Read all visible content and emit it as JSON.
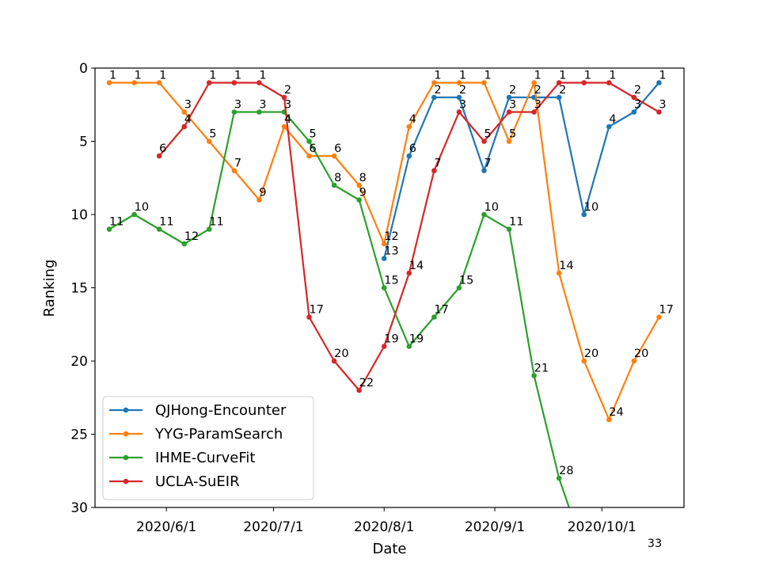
{
  "chart_data": {
    "type": "line",
    "xlabel": "Date",
    "ylabel": "Ranking",
    "ylim": [
      30,
      0
    ],
    "y_inverted": true,
    "xlim": [
      "2020-05-12",
      "2020-10-24"
    ],
    "x_ticks": [
      {
        "date": "2020-06-01",
        "label": "2020/6/1"
      },
      {
        "date": "2020-07-01",
        "label": "2020/7/1"
      },
      {
        "date": "2020-08-01",
        "label": "2020/8/1"
      },
      {
        "date": "2020-09-01",
        "label": "2020/9/1"
      },
      {
        "date": "2020-10-01",
        "label": "2020/10/1"
      }
    ],
    "y_ticks": [
      0,
      5,
      10,
      15,
      20,
      25,
      30
    ],
    "grid": false,
    "legend": "lower-left",
    "series": [
      {
        "name": "QJHong-Encounter",
        "color": "#1f77b4",
        "points": [
          {
            "x": "2020-08-01",
            "y": 13
          },
          {
            "x": "2020-08-08",
            "y": 6
          },
          {
            "x": "2020-08-15",
            "y": 2
          },
          {
            "x": "2020-08-22",
            "y": 2
          },
          {
            "x": "2020-08-29",
            "y": 7
          },
          {
            "x": "2020-09-05",
            "y": 2
          },
          {
            "x": "2020-09-12",
            "y": 2
          },
          {
            "x": "2020-09-19",
            "y": 2
          },
          {
            "x": "2020-09-26",
            "y": 10
          },
          {
            "x": "2020-10-03",
            "y": 4
          },
          {
            "x": "2020-10-10",
            "y": 3
          },
          {
            "x": "2020-10-17",
            "y": 1
          }
        ]
      },
      {
        "name": "YYG-ParamSearch",
        "color": "#ff7f0e",
        "points": [
          {
            "x": "2020-05-16",
            "y": 1
          },
          {
            "x": "2020-05-23",
            "y": 1
          },
          {
            "x": "2020-05-30",
            "y": 1
          },
          {
            "x": "2020-06-06",
            "y": 3
          },
          {
            "x": "2020-06-13",
            "y": 5
          },
          {
            "x": "2020-06-20",
            "y": 7
          },
          {
            "x": "2020-06-27",
            "y": 9
          },
          {
            "x": "2020-07-04",
            "y": 4
          },
          {
            "x": "2020-07-11",
            "y": 6
          },
          {
            "x": "2020-07-18",
            "y": 6
          },
          {
            "x": "2020-07-25",
            "y": 8
          },
          {
            "x": "2020-08-01",
            "y": 12
          },
          {
            "x": "2020-08-08",
            "y": 4
          },
          {
            "x": "2020-08-15",
            "y": 1
          },
          {
            "x": "2020-08-22",
            "y": 1
          },
          {
            "x": "2020-08-29",
            "y": 1
          },
          {
            "x": "2020-09-05",
            "y": 5
          },
          {
            "x": "2020-09-12",
            "y": 1
          },
          {
            "x": "2020-09-19",
            "y": 14
          },
          {
            "x": "2020-09-26",
            "y": 20
          },
          {
            "x": "2020-10-03",
            "y": 24
          },
          {
            "x": "2020-10-10",
            "y": 20
          },
          {
            "x": "2020-10-17",
            "y": 17
          }
        ]
      },
      {
        "name": "IHME-CurveFit",
        "color": "#2ca02c",
        "points": [
          {
            "x": "2020-05-16",
            "y": 11
          },
          {
            "x": "2020-05-23",
            "y": 10
          },
          {
            "x": "2020-05-30",
            "y": 11
          },
          {
            "x": "2020-06-06",
            "y": 12
          },
          {
            "x": "2020-06-13",
            "y": 11
          },
          {
            "x": "2020-06-20",
            "y": 3
          },
          {
            "x": "2020-06-27",
            "y": 3
          },
          {
            "x": "2020-07-04",
            "y": 3
          },
          {
            "x": "2020-07-11",
            "y": 5
          },
          {
            "x": "2020-07-18",
            "y": 8
          },
          {
            "x": "2020-07-25",
            "y": 9
          },
          {
            "x": "2020-08-01",
            "y": 15
          },
          {
            "x": "2020-08-08",
            "y": 19
          },
          {
            "x": "2020-08-15",
            "y": 17
          },
          {
            "x": "2020-08-22",
            "y": 15
          },
          {
            "x": "2020-08-29",
            "y": 10
          },
          {
            "x": "2020-09-05",
            "y": 11
          },
          {
            "x": "2020-09-12",
            "y": 21
          },
          {
            "x": "2020-09-19",
            "y": 28
          },
          {
            "x": "2020-09-26",
            "y": 33
          }
        ]
      },
      {
        "name": "UCLA-SuEIR",
        "color": "#d62728",
        "points": [
          {
            "x": "2020-05-30",
            "y": 6
          },
          {
            "x": "2020-06-06",
            "y": 4
          },
          {
            "x": "2020-06-13",
            "y": 1
          },
          {
            "x": "2020-06-20",
            "y": 1
          },
          {
            "x": "2020-06-27",
            "y": 1
          },
          {
            "x": "2020-07-04",
            "y": 2
          },
          {
            "x": "2020-07-11",
            "y": 17
          },
          {
            "x": "2020-07-18",
            "y": 20
          },
          {
            "x": "2020-07-25",
            "y": 22
          },
          {
            "x": "2020-08-01",
            "y": 19
          },
          {
            "x": "2020-08-08",
            "y": 14
          },
          {
            "x": "2020-08-15",
            "y": 7
          },
          {
            "x": "2020-08-22",
            "y": 3
          },
          {
            "x": "2020-08-29",
            "y": 5
          },
          {
            "x": "2020-09-05",
            "y": 3
          },
          {
            "x": "2020-09-12",
            "y": 3
          },
          {
            "x": "2020-09-19",
            "y": 1
          },
          {
            "x": "2020-09-26",
            "y": 1
          },
          {
            "x": "2020-10-03",
            "y": 1
          },
          {
            "x": "2020-10-10",
            "y": 2
          },
          {
            "x": "2020-10-17",
            "y": 3
          }
        ]
      }
    ]
  }
}
